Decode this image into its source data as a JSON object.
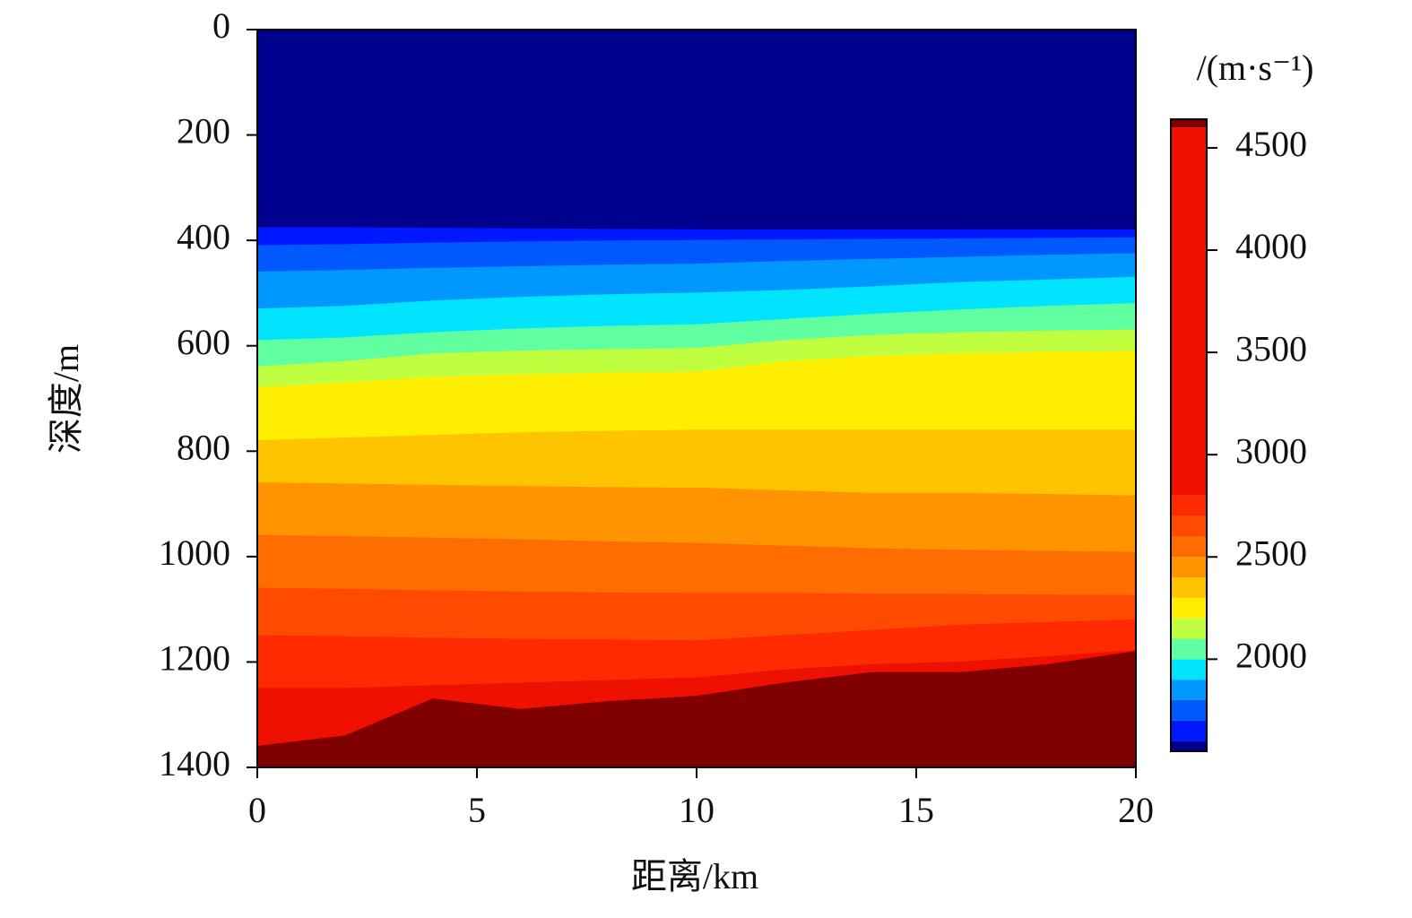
{
  "chart_data": {
    "type": "contourf",
    "xlabel": "距离/km",
    "ylabel": "深度/m",
    "colorbar_label": "/(m·s⁻¹)",
    "x": [
      0,
      2,
      4,
      6,
      8,
      10,
      12,
      14,
      16,
      18,
      20
    ],
    "xlim": [
      0,
      20
    ],
    "xticks": [
      0,
      5,
      10,
      15,
      20
    ],
    "ylim": [
      0,
      1400
    ],
    "yticks": [
      0,
      200,
      400,
      600,
      800,
      1000,
      1200,
      1400
    ],
    "y_inverted": true,
    "clim": [
      1550,
      4640
    ],
    "cticks": [
      2000,
      2500,
      3000,
      3500,
      4000,
      4500
    ],
    "levels": [
      {
        "value": 1550,
        "color": "#00008f",
        "depth": [
          0,
          0,
          0,
          0,
          0,
          0,
          0,
          0,
          0,
          0,
          0
        ]
      },
      {
        "value": 1600,
        "color": "#0018ff",
        "depth": [
          376,
          376,
          377,
          378,
          379,
          380,
          380,
          380,
          380,
          380,
          380
        ]
      },
      {
        "value": 1700,
        "color": "#0058ff",
        "depth": [
          410,
          408,
          405,
          403,
          401,
          400,
          399,
          398,
          397,
          396,
          395
        ]
      },
      {
        "value": 1800,
        "color": "#0098ff",
        "depth": [
          460,
          457,
          453,
          450,
          447,
          445,
          440,
          436,
          432,
          428,
          425
        ]
      },
      {
        "value": 1900,
        "color": "#00e4ff",
        "depth": [
          530,
          525,
          515,
          508,
          503,
          500,
          495,
          488,
          480,
          475,
          470
        ]
      },
      {
        "value": 2000,
        "color": "#60ff9f",
        "depth": [
          590,
          585,
          575,
          568,
          563,
          560,
          550,
          540,
          532,
          525,
          520
        ]
      },
      {
        "value": 2100,
        "color": "#c0ff40",
        "depth": [
          640,
          630,
          615,
          610,
          607,
          605,
          590,
          580,
          575,
          572,
          570
        ]
      },
      {
        "value": 2200,
        "color": "#ffee00",
        "depth": [
          680,
          670,
          660,
          655,
          652,
          650,
          630,
          620,
          615,
          612,
          610
        ]
      },
      {
        "value": 2300,
        "color": "#ffc400",
        "depth": [
          780,
          775,
          770,
          765,
          762,
          760,
          760,
          760,
          760,
          760,
          760
        ]
      },
      {
        "value": 2400,
        "color": "#ff9400",
        "depth": [
          860,
          862,
          865,
          867,
          869,
          870,
          875,
          880,
          880,
          882,
          885
        ]
      },
      {
        "value": 2500,
        "color": "#ff6c00",
        "depth": [
          960,
          962,
          965,
          968,
          972,
          975,
          980,
          985,
          988,
          990,
          992
        ]
      },
      {
        "value": 2600,
        "color": "#ff4a00",
        "depth": [
          1060,
          1062,
          1065,
          1067,
          1069,
          1070,
          1070,
          1071,
          1072,
          1073,
          1074
        ]
      },
      {
        "value": 2700,
        "color": "#ff2a00",
        "depth": [
          1150,
          1152,
          1155,
          1157,
          1158,
          1160,
          1150,
          1140,
          1130,
          1125,
          1120
        ]
      },
      {
        "value": 2800,
        "color": "#f01000",
        "depth": [
          1250,
          1250,
          1245,
          1240,
          1235,
          1230,
          1215,
          1205,
          1200,
          1190,
          1178
        ]
      },
      {
        "value": 4600,
        "color": "#800000",
        "depth": [
          1360,
          1340,
          1270,
          1290,
          1275,
          1265,
          1240,
          1220,
          1220,
          1205,
          1180
        ]
      }
    ]
  }
}
